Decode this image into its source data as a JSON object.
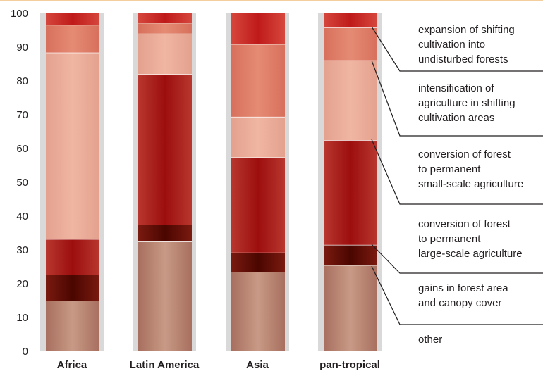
{
  "chart_data": {
    "type": "bar",
    "stacked": true,
    "ylim": [
      0,
      100
    ],
    "yticks": [
      0,
      10,
      20,
      30,
      40,
      50,
      60,
      70,
      80,
      90,
      100
    ],
    "categories": [
      "Africa",
      "Latin America",
      "Asia",
      "pan-tropical"
    ],
    "series": [
      {
        "name": "other",
        "values": [
          15,
          32.5,
          23.5,
          25.5
        ]
      },
      {
        "name": "gains in forest area and canopy cover",
        "values": [
          7.7,
          5,
          5.7,
          6
        ]
      },
      {
        "name": "conversion of forest to permanent large-scale agriculture",
        "values": [
          10.5,
          44.5,
          28.2,
          31
        ]
      },
      {
        "name": "conversion of forest to permanent small-scale agriculture",
        "values": [
          55.2,
          12,
          12,
          23.6
        ]
      },
      {
        "name": "intensification of agriculture in shifting cultivation areas",
        "values": [
          8.2,
          3.2,
          21.5,
          9.7
        ]
      },
      {
        "name": "expansion of shifting cultivation into undisturbed forests",
        "values": [
          3.4,
          2.8,
          9.1,
          4.2
        ]
      }
    ],
    "legend_placement": "right",
    "grid": "light grey background band per category",
    "colors": {
      "background": "#d9d9d9",
      "top_rule": "#f2cf9c",
      "other": [
        "#a86f5f",
        "#c89a86"
      ],
      "gains": [
        "#7a1a10",
        "#4a0600"
      ],
      "large_scale": [
        "#b8372e",
        "#9c0e0e"
      ],
      "small_scale": [
        "#e3a18e",
        "#f0b6a2"
      ],
      "intensification": [
        "#d7705c",
        "#e58b74"
      ],
      "expansion": [
        "#d6473c",
        "#bf1a1a"
      ]
    }
  }
}
